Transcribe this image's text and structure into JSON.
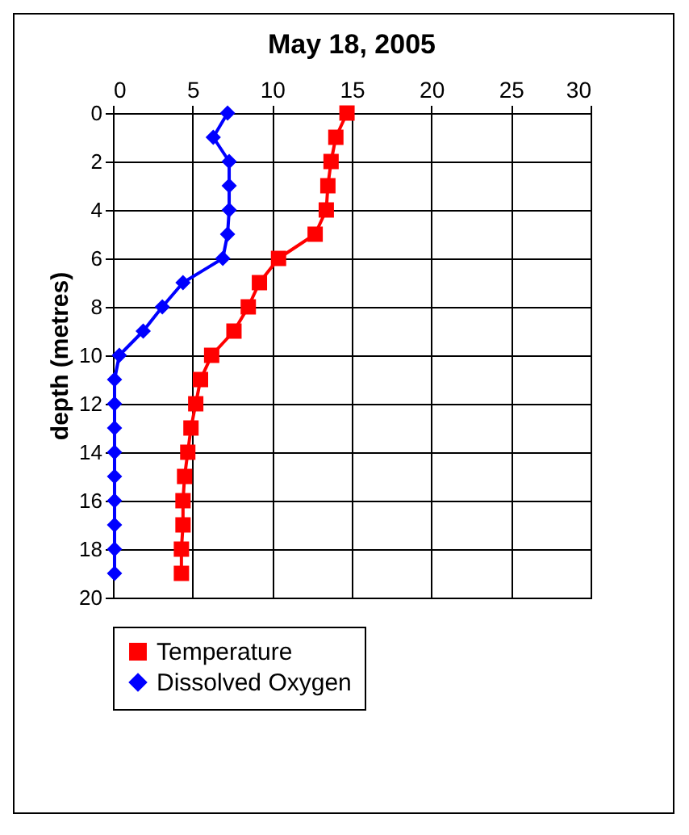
{
  "chart_data": {
    "type": "line",
    "title": "May 18, 2005",
    "ylabel": "depth (metres)",
    "xlim": [
      0,
      30
    ],
    "xticks": [
      0,
      5,
      10,
      15,
      20,
      25,
      30
    ],
    "ylim": [
      20,
      0
    ],
    "yticks": [
      0,
      2,
      4,
      6,
      8,
      10,
      12,
      14,
      16,
      18,
      20
    ],
    "grid": true,
    "legend": "bottom",
    "series": [
      {
        "name": "Temperature",
        "color": "#ff0000",
        "marker": "square",
        "x": [
          14.7,
          14.0,
          13.7,
          13.5,
          13.4,
          12.7,
          10.4,
          9.2,
          8.5,
          7.6,
          6.2,
          5.5,
          5.2,
          4.9,
          4.7,
          4.5,
          4.4,
          4.4,
          4.3,
          4.3
        ],
        "values": [
          0,
          1,
          2,
          3,
          4,
          5,
          6,
          7,
          8,
          9,
          10,
          11,
          12,
          13,
          14,
          15,
          16,
          17,
          18,
          19
        ]
      },
      {
        "name": "Dissolved Oxygen",
        "color": "#0000ff",
        "marker": "diamond",
        "x": [
          7.2,
          6.3,
          7.3,
          7.3,
          7.3,
          7.2,
          6.9,
          4.4,
          3.1,
          1.9,
          0.4,
          0.1,
          0.1,
          0.1,
          0.1,
          0.1,
          0.1,
          0.1,
          0.1,
          0.1
        ],
        "values": [
          0,
          1,
          2,
          3,
          4,
          5,
          6,
          7,
          8,
          9,
          10,
          11,
          12,
          13,
          14,
          15,
          16,
          17,
          18,
          19
        ]
      }
    ]
  }
}
